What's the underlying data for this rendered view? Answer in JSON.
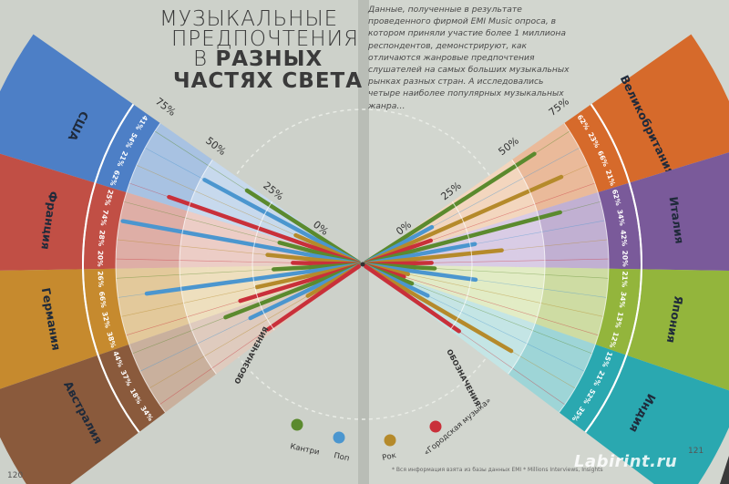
{
  "title": {
    "line1": "МУЗЫКАЛЬНЫЕ",
    "line2": "ПРЕДПОЧТЕНИЯ",
    "line3_a": "В ",
    "line3_b": "РАЗНЫХ",
    "line4": "ЧАСТЯХ СВЕТА"
  },
  "intro": "Данные, полученные в результате проведенного фирмой EMI Music опроса, в котором приняли участие более 1 миллиона респондентов, демонстрируют, как отличаются жанровые предпочтения слушателей на самых больших музыкальных рынках разных стран. А исследовались четыре наиболее популярных музыкальных жанра…",
  "pages": {
    "left": "120",
    "right": "121"
  },
  "footnote": "* Вся информация взята из базы данных EMI * Millions Interviews, Insights",
  "watermark": "Labirint.ru",
  "scale_labels": [
    "0%",
    "25%",
    "50%",
    "75%"
  ],
  "legend_heading": "ОБОЗНАЧЕНИЯ",
  "genres": [
    {
      "name": "Кантри",
      "color": "#5b8a2e"
    },
    {
      "name": "Поп",
      "color": "#4b96cf"
    },
    {
      "name": "Рок",
      "color": "#b58a2b"
    },
    {
      "name": "«Городская музыка»",
      "color": "#c9303a"
    }
  ],
  "countries_left": [
    {
      "name": "США",
      "color": "#4d7fc6",
      "light": "#c7d9ee",
      "values": [
        "41%",
        "54%",
        "21%",
        "62%"
      ]
    },
    {
      "name": "Франция",
      "color": "#c14f45",
      "light": "#eccdc6",
      "values": [
        "25%",
        "74%",
        "28%",
        "20%"
      ]
    },
    {
      "name": "Германия",
      "color": "#c68a2e",
      "light": "#f0dfbe",
      "values": [
        "26%",
        "66%",
        "32%",
        "38%"
      ]
    },
    {
      "name": "Австралия",
      "color": "#8a5a3c",
      "light": "#e0cbbd",
      "values": [
        "44%",
        "37%",
        "18%",
        "34%"
      ]
    }
  ],
  "countries_right": [
    {
      "name": "Великобритания",
      "color": "#d66a2b",
      "light": "#f4d5bd",
      "values": [
        "62%",
        "23%",
        "66%",
        "21%"
      ]
    },
    {
      "name": "Италия",
      "color": "#7a5a9a",
      "light": "#d9cce6",
      "values": [
        "62%",
        "34%",
        "42%",
        "20%"
      ]
    },
    {
      "name": "Япония",
      "color": "#93b53c",
      "light": "#e3ecc4",
      "values": [
        "21%",
        "34%",
        "13%",
        "12%"
      ]
    },
    {
      "name": "Индия",
      "color": "#2aa8b0",
      "light": "#c3e5e6",
      "values": [
        "15%",
        "21%",
        "52%",
        "35%"
      ]
    }
  ],
  "chart_data": {
    "type": "bar",
    "categories": [
      "США",
      "Франция",
      "Германия",
      "Австралия",
      "Великобритания",
      "Италия",
      "Япония",
      "Индия"
    ],
    "series": [
      {
        "name": "Кантри",
        "values": [
          41,
          25,
          26,
          44,
          62,
          62,
          21,
          15
        ]
      },
      {
        "name": "Поп",
        "values": [
          54,
          74,
          66,
          37,
          23,
          34,
          34,
          21
        ]
      },
      {
        "name": "Рок",
        "values": [
          21,
          28,
          32,
          18,
          66,
          42,
          13,
          52
        ]
      },
      {
        "name": "«Городская музыка»",
        "values": [
          62,
          20,
          38,
          34,
          21,
          20,
          12,
          35
        ]
      }
    ],
    "ylim": [
      0,
      75
    ]
  }
}
